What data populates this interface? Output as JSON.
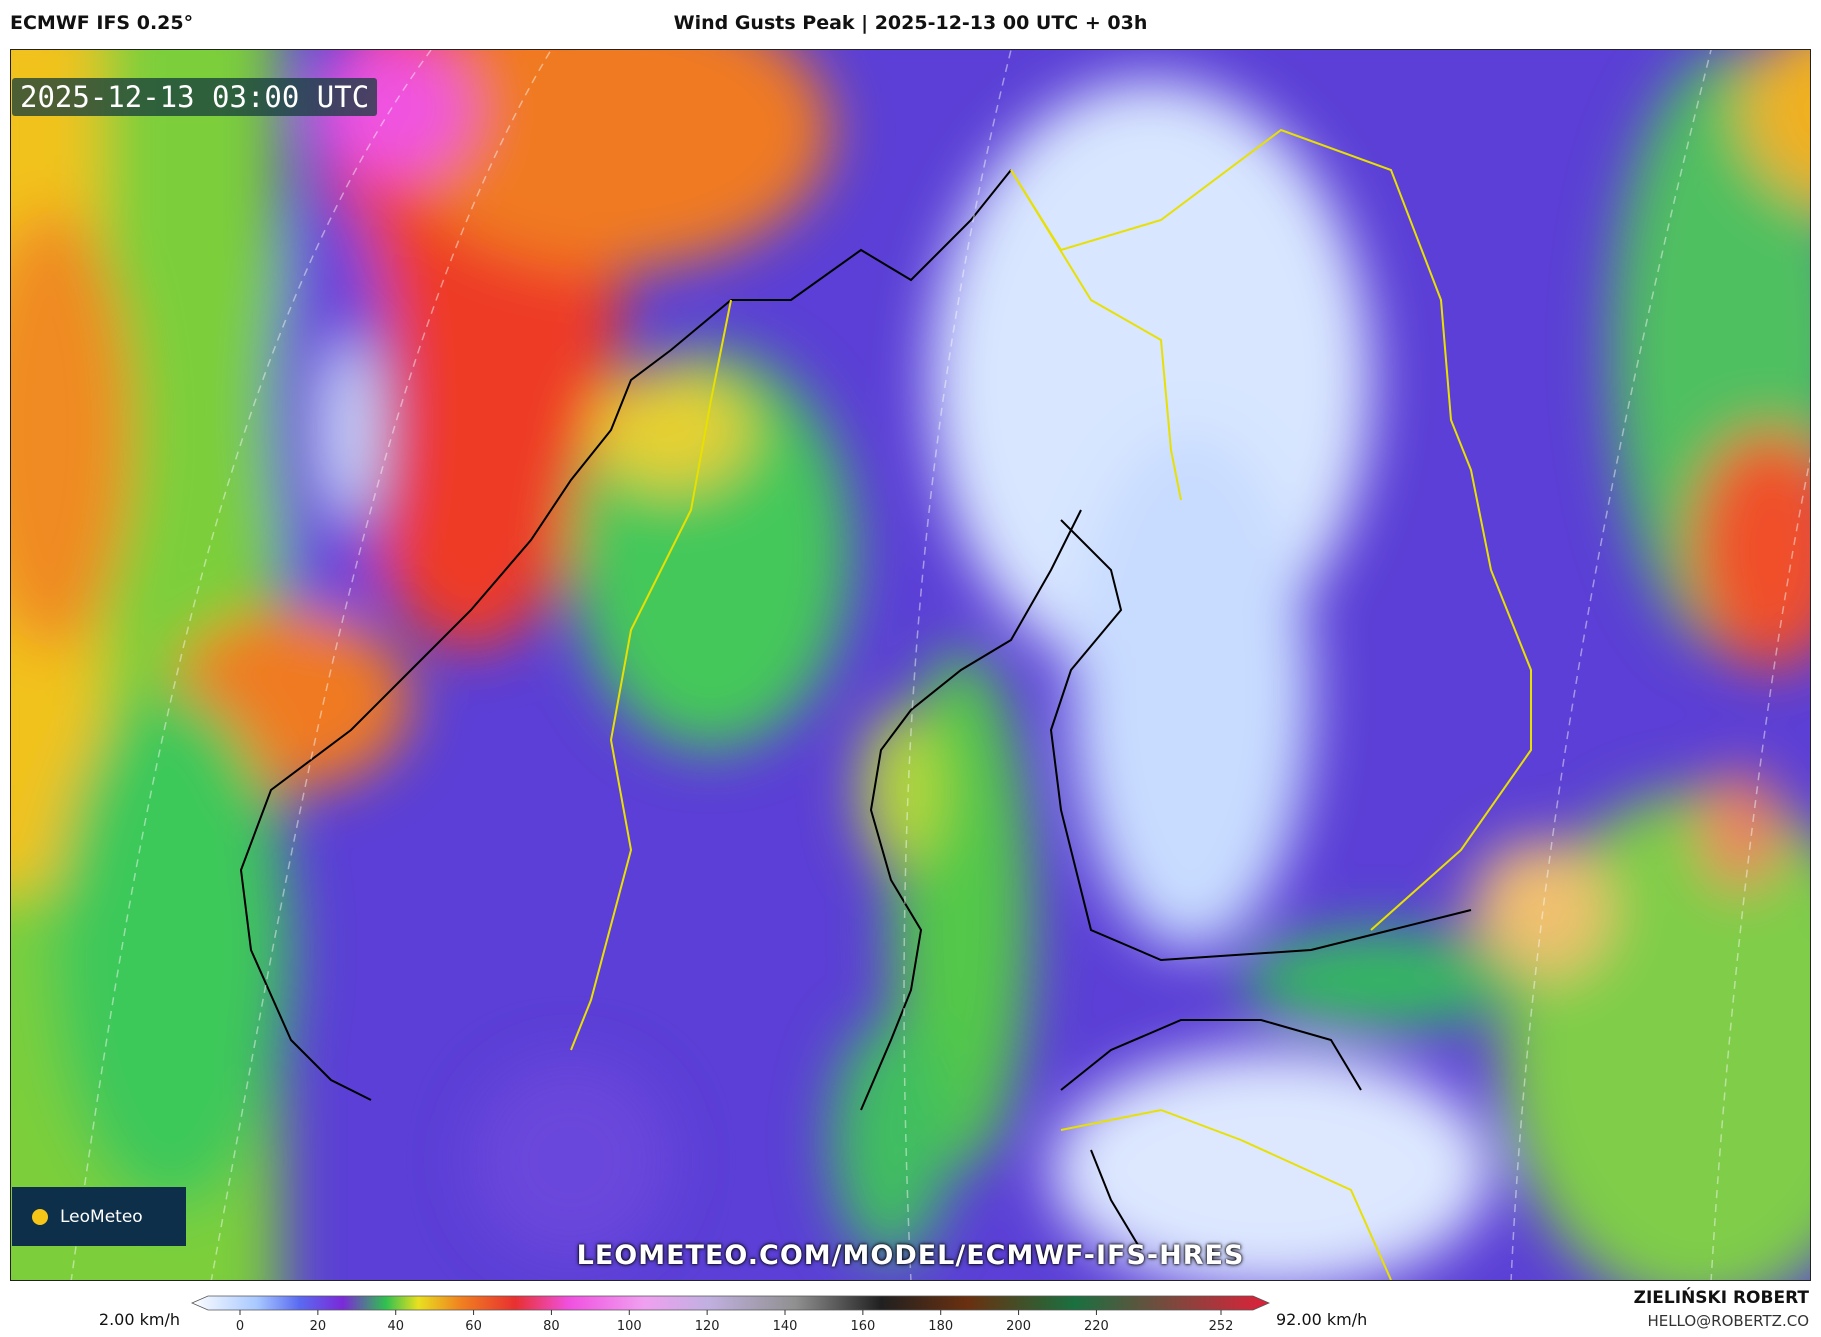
{
  "header": {
    "model": "ECMWF IFS 0.25°",
    "title": "Wind Gusts Peak | 2025-12-13 00 UTC + 03h"
  },
  "map": {
    "timestamp": "2025-12-13 03:00 UTC",
    "logo": "LeoMeteo",
    "watermark": "LEOMETEO.COM/MODEL/ECMWF-IFS-HRES"
  },
  "colorbar": {
    "min_label": "2.00 km/h",
    "max_label": "92.00 km/h",
    "ticks": [
      0,
      20,
      40,
      60,
      80,
      100,
      120,
      140,
      160,
      180,
      200,
      220,
      252
    ]
  },
  "footer": {
    "author": "ZIELIŃSKI ROBERT",
    "email": "HELLO@ROBERTZ.CO"
  }
}
